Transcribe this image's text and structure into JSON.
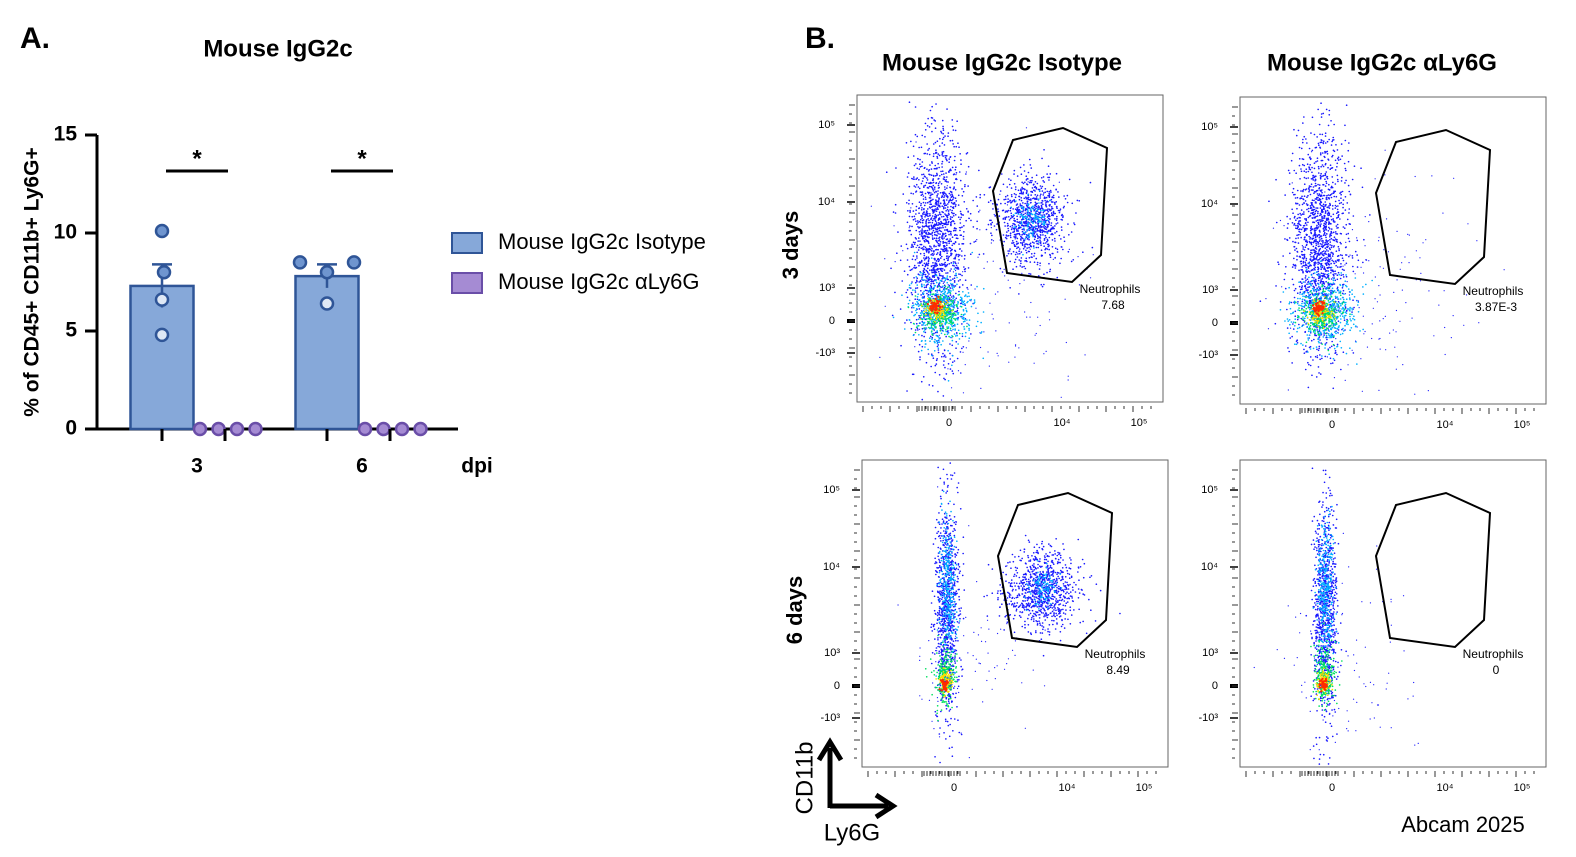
{
  "chart_data": {
    "type": "bar",
    "panel_label": "A.",
    "title": "Mouse IgG2c",
    "y_label": "% of CD45+ CD11b+ Ly6G+",
    "x_label": "dpi",
    "categories": [
      "3",
      "6"
    ],
    "series": [
      {
        "name": "Mouse IgG2c Isotype",
        "color": "#86a8d9",
        "values": [
          7.3,
          7.8
        ],
        "errors": [
          1.1,
          0.6
        ],
        "points": [
          [
            10.1,
            8.0,
            6.6,
            4.8
          ],
          [
            8.5,
            8.0,
            6.4,
            8.5
          ]
        ]
      },
      {
        "name": "Mouse IgG2c αLy6G",
        "color": "#a58bd3",
        "values": [
          0,
          0
        ],
        "errors": [
          0,
          0
        ],
        "points": [
          [
            0,
            0,
            0,
            0
          ],
          [
            0,
            0,
            0,
            0
          ]
        ]
      }
    ],
    "significance": [
      "*",
      "*"
    ],
    "ylim": [
      0,
      15
    ],
    "yticks": [
      0,
      5,
      10,
      15
    ]
  },
  "flow_panel": {
    "panel_label": "B.",
    "column_titles": [
      "Mouse IgG2c Isotype",
      "Mouse IgG2c αLy6G"
    ],
    "row_titles": [
      "3 days",
      "6 days"
    ],
    "gate_label": "Neutrophils",
    "gate_values": [
      [
        "7.68",
        "3.87E-3"
      ],
      [
        "8.49",
        "0"
      ]
    ],
    "y_ticks": [
      "10⁵",
      "10⁴",
      "10³",
      "0",
      "-10³"
    ],
    "x_ticks": [
      "0",
      "10⁴",
      "10⁵"
    ],
    "y_axis_label": "CD11b",
    "x_axis_label": "Ly6G",
    "credit": "Abcam 2025"
  }
}
